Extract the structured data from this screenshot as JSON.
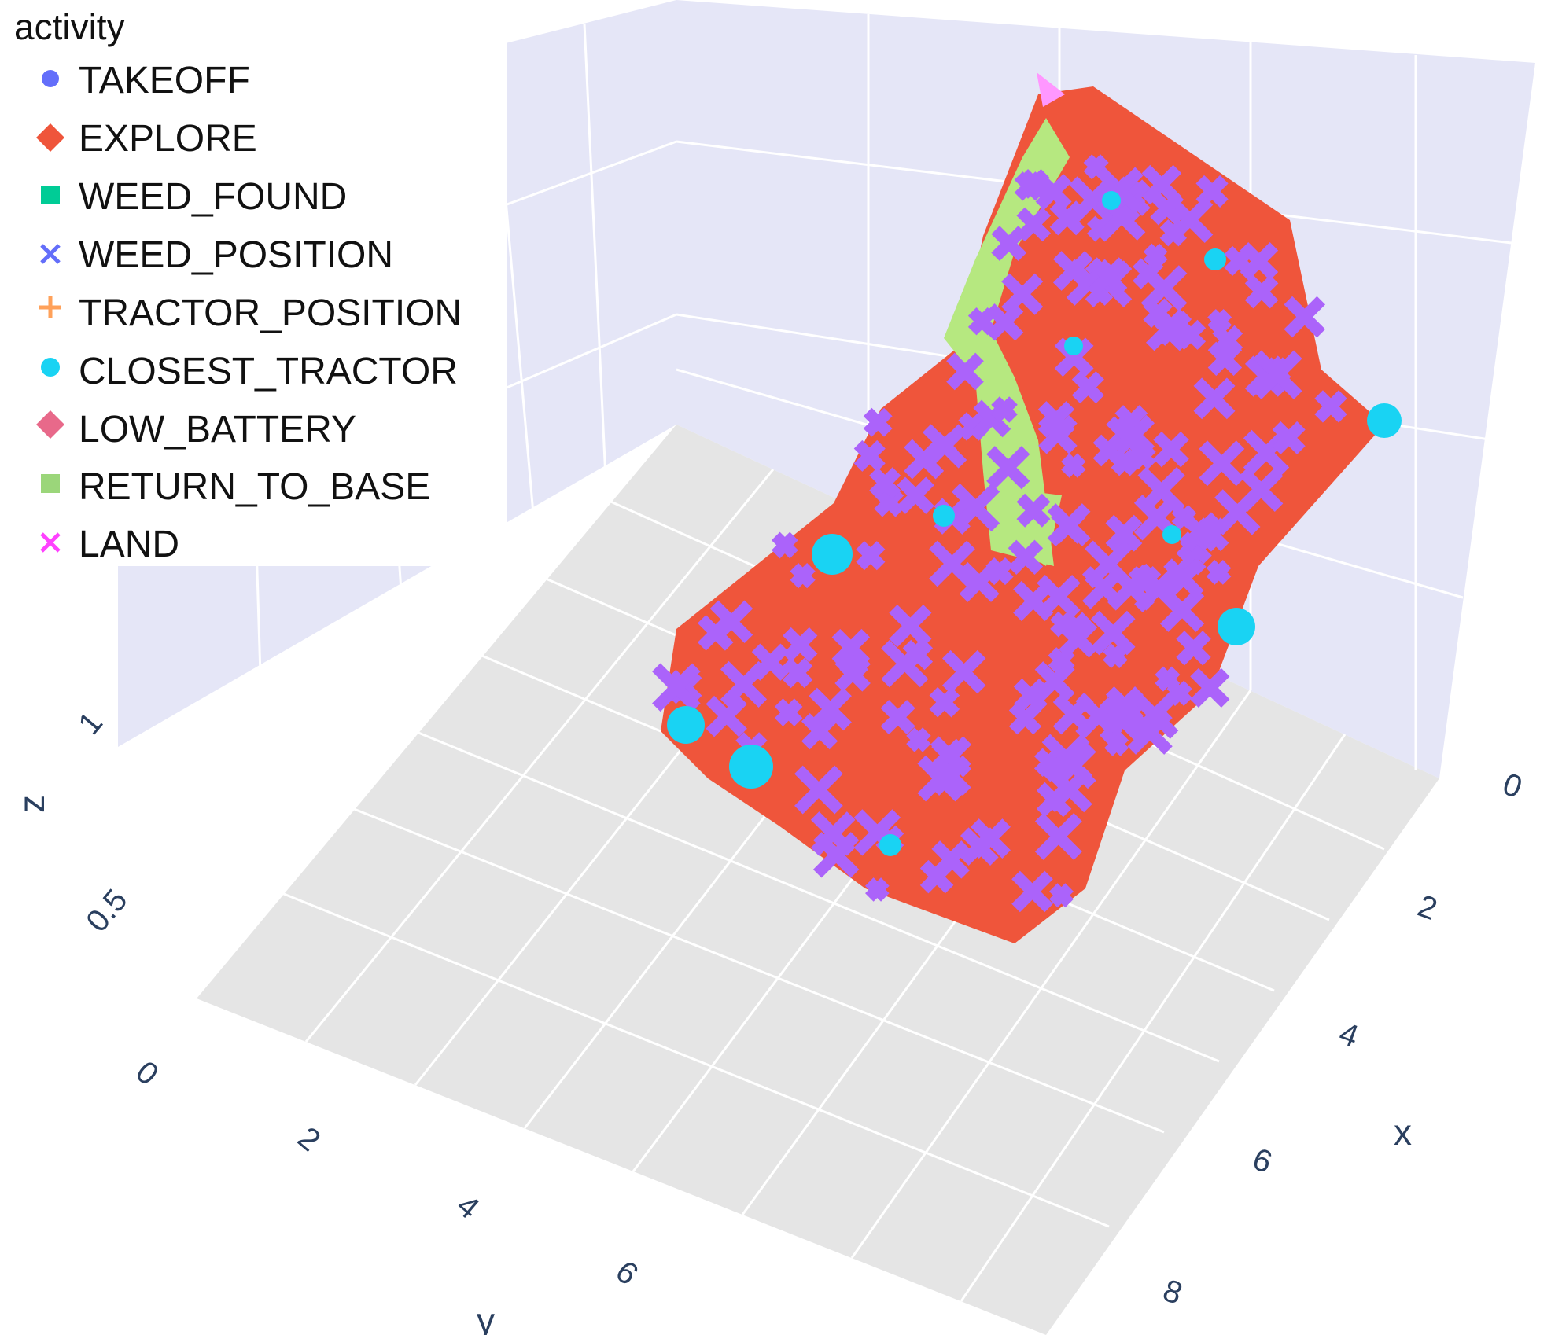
{
  "chart_data": {
    "type": "scatter",
    "is_3d": true,
    "legend": {
      "title": "activity",
      "placement": "top-left",
      "entries": [
        {
          "name": "TAKEOFF",
          "color": "#636efa",
          "symbol": "circle"
        },
        {
          "name": "EXPLORE",
          "color": "#ef553b",
          "symbol": "diamond"
        },
        {
          "name": "WEED_FOUND",
          "color": "#00cc96",
          "symbol": "square"
        },
        {
          "name": "WEED_POSITION",
          "color": "#ab63fa",
          "symbol": "x"
        },
        {
          "name": "TRACTOR_POSITION",
          "color": "#ffa15a",
          "symbol": "cross"
        },
        {
          "name": "CLOSEST_TRACTOR",
          "color": "#19d3f3",
          "symbol": "circle"
        },
        {
          "name": "LOW_BATTERY",
          "color": "#ff6692",
          "symbol": "diamond"
        },
        {
          "name": "RETURN_TO_BASE",
          "color": "#b6e880",
          "symbol": "square"
        },
        {
          "name": "LAND",
          "color": "#ff97ff",
          "symbol": "x"
        }
      ]
    },
    "axes": {
      "x": {
        "title": "x",
        "ticks": [
          "0",
          "2",
          "4",
          "6",
          "8"
        ],
        "range": [
          0,
          9
        ]
      },
      "y": {
        "title": "y",
        "ticks": [
          "0",
          "2",
          "4",
          "6"
        ],
        "range": [
          0,
          7.5
        ]
      },
      "z": {
        "title": "z",
        "ticks": [
          "0",
          "0.5",
          "1"
        ],
        "range": [
          0,
          1.6
        ]
      }
    },
    "grid": true,
    "series": [
      {
        "name": "EXPLORE",
        "points": [
          [
            1,
            4,
            1.2
          ],
          [
            2,
            5,
            1.1
          ],
          [
            3,
            6,
            1.0
          ],
          [
            4,
            6,
            0.9
          ],
          [
            5,
            5,
            0.8
          ],
          [
            6,
            5,
            0.7
          ],
          [
            7,
            4,
            0.6
          ],
          [
            8,
            4,
            0.5
          ]
        ]
      },
      {
        "name": "WEED_POSITION",
        "points": [
          [
            1,
            5,
            1.3
          ],
          [
            3,
            6,
            1.1
          ],
          [
            5,
            5,
            0.9
          ],
          [
            7,
            5,
            0.6
          ],
          [
            8,
            4,
            0.5
          ]
        ]
      },
      {
        "name": "CLOSEST_TRACTOR",
        "points": [
          [
            2,
            6,
            1.2
          ],
          [
            5,
            6,
            0.9
          ],
          [
            8,
            5,
            0.5
          ]
        ]
      },
      {
        "name": "RETURN_TO_BASE",
        "points": [
          [
            2,
            5,
            1.4
          ],
          [
            3,
            5,
            1.2
          ]
        ]
      },
      {
        "name": "LAND",
        "points": [
          [
            0,
            4,
            1.6
          ]
        ]
      }
    ]
  }
}
